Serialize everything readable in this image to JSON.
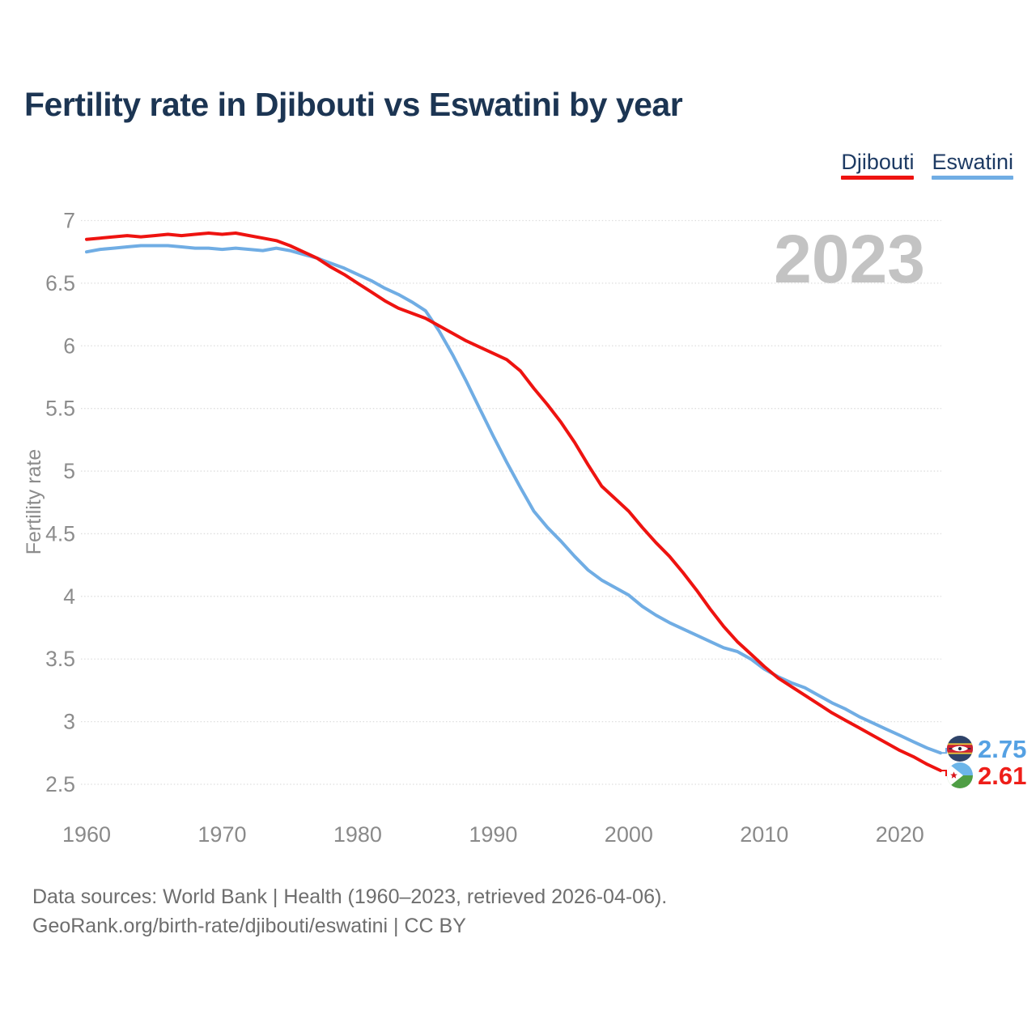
{
  "title": "Fertility rate in Djibouti vs Eswatini by year",
  "legend": {
    "items": [
      {
        "label": "Djibouti",
        "color": "#ee1310"
      },
      {
        "label": "Eswatini",
        "color": "#70ade4"
      }
    ]
  },
  "watermark": "2023",
  "footer": {
    "line1": "Data sources: World Bank | Health (1960–2023, retrieved 2026-04-06).",
    "line2": "GeoRank.org/birth-rate/djibouti/eswatini | CC BY"
  },
  "chart_data": {
    "type": "line",
    "title": "Fertility rate in Djibouti vs Eswatini by year",
    "xlabel": "",
    "ylabel": "Fertility rate",
    "xlim": [
      1960,
      2023
    ],
    "ylim": [
      2.5,
      7
    ],
    "xticks": [
      1960,
      1970,
      1980,
      1990,
      2000,
      2010,
      2020
    ],
    "yticks": [
      2.5,
      3,
      3.5,
      4,
      4.5,
      5,
      5.5,
      6,
      6.5,
      7
    ],
    "grid": "horizontal-dotted",
    "legend_position": "top-right",
    "x": [
      1960,
      1961,
      1962,
      1963,
      1964,
      1965,
      1966,
      1967,
      1968,
      1969,
      1970,
      1971,
      1972,
      1973,
      1974,
      1975,
      1976,
      1977,
      1978,
      1979,
      1980,
      1981,
      1982,
      1983,
      1984,
      1985,
      1986,
      1987,
      1988,
      1989,
      1990,
      1991,
      1992,
      1993,
      1994,
      1995,
      1996,
      1997,
      1998,
      1999,
      2000,
      2001,
      2002,
      2003,
      2004,
      2005,
      2006,
      2007,
      2008,
      2009,
      2010,
      2011,
      2012,
      2013,
      2014,
      2015,
      2016,
      2017,
      2018,
      2019,
      2020,
      2021,
      2022,
      2023
    ],
    "series": [
      {
        "name": "Eswatini",
        "color": "#70ade4",
        "end_label": "2.75",
        "end_label_color": "#55a1e3",
        "values": [
          6.75,
          6.77,
          6.78,
          6.79,
          6.8,
          6.8,
          6.8,
          6.79,
          6.78,
          6.78,
          6.77,
          6.78,
          6.77,
          6.76,
          6.78,
          6.76,
          6.73,
          6.7,
          6.66,
          6.62,
          6.57,
          6.52,
          6.46,
          6.41,
          6.35,
          6.28,
          6.12,
          5.93,
          5.72,
          5.5,
          5.28,
          5.07,
          4.87,
          4.68,
          4.55,
          4.44,
          4.32,
          4.21,
          4.13,
          4.07,
          4.01,
          3.92,
          3.85,
          3.79,
          3.74,
          3.69,
          3.64,
          3.59,
          3.56,
          3.5,
          3.42,
          3.36,
          3.31,
          3.27,
          3.21,
          3.15,
          3.1,
          3.04,
          2.99,
          2.94,
          2.89,
          2.84,
          2.79,
          2.75
        ]
      },
      {
        "name": "Djibouti",
        "color": "#ee1310",
        "end_label": "2.61",
        "end_label_color": "#ee1e19",
        "values": [
          6.85,
          6.86,
          6.87,
          6.88,
          6.87,
          6.88,
          6.89,
          6.88,
          6.89,
          6.9,
          6.89,
          6.9,
          6.88,
          6.86,
          6.84,
          6.8,
          6.75,
          6.7,
          6.63,
          6.57,
          6.5,
          6.43,
          6.36,
          6.3,
          6.26,
          6.22,
          6.16,
          6.1,
          6.04,
          5.99,
          5.94,
          5.89,
          5.8,
          5.66,
          5.53,
          5.39,
          5.23,
          5.05,
          4.88,
          4.78,
          4.68,
          4.55,
          4.43,
          4.32,
          4.19,
          4.05,
          3.9,
          3.76,
          3.64,
          3.54,
          3.44,
          3.35,
          3.28,
          3.21,
          3.14,
          3.07,
          3.01,
          2.95,
          2.89,
          2.83,
          2.77,
          2.72,
          2.66,
          2.61
        ]
      }
    ]
  }
}
